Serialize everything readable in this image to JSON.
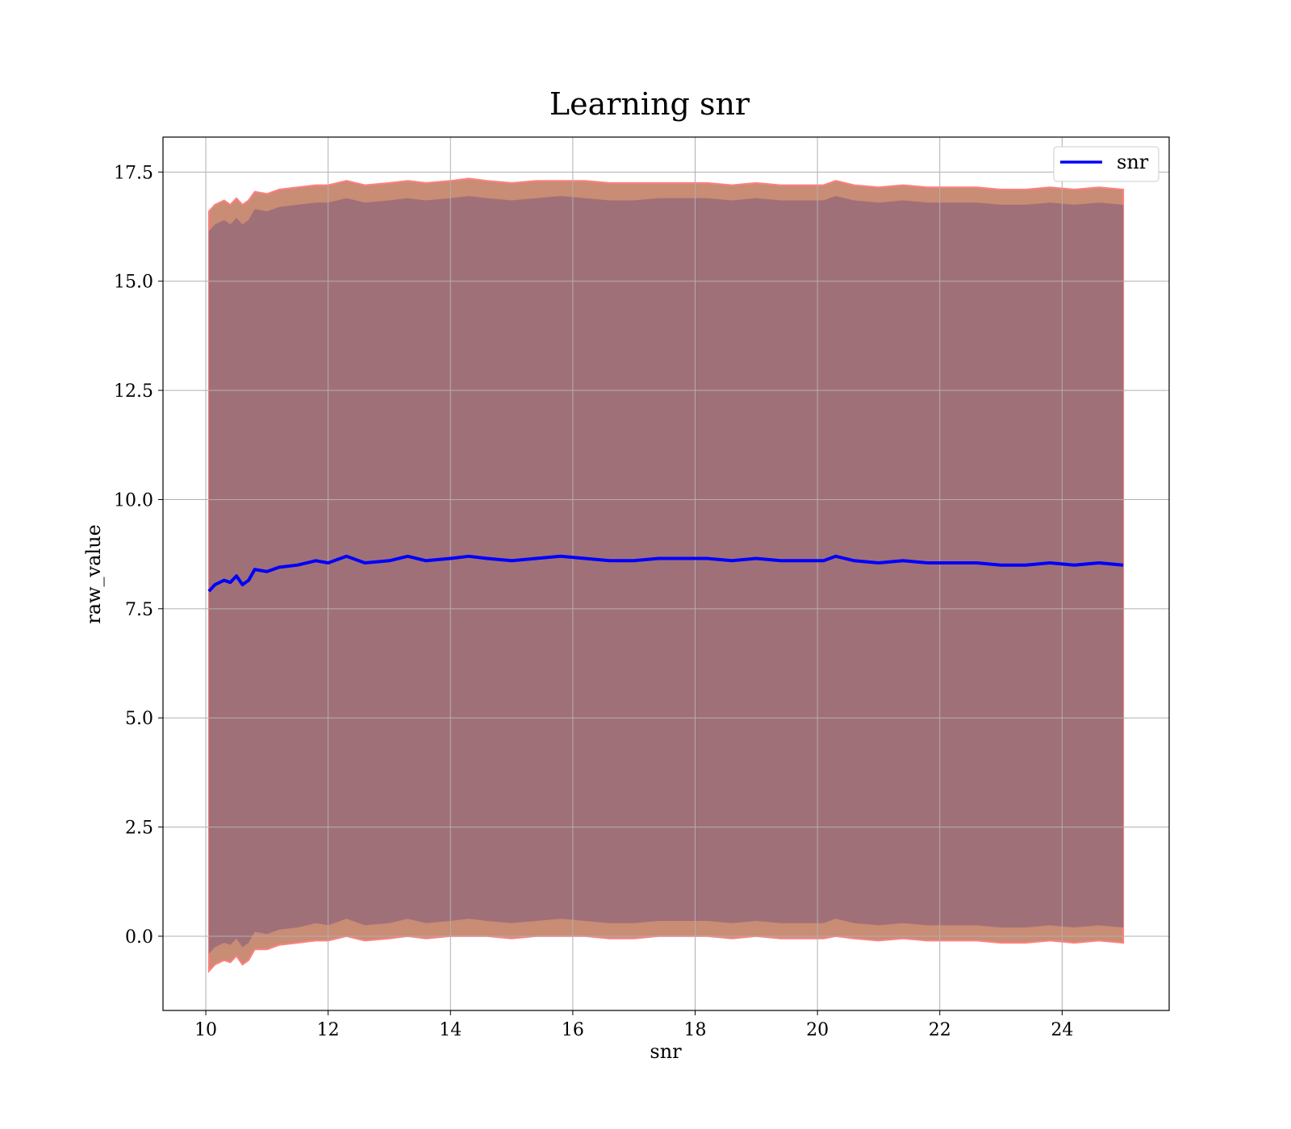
{
  "chart_data": {
    "type": "line",
    "title": "Learning snr",
    "xlabel": "snr",
    "ylabel": "raw_value",
    "xlim": [
      9.3,
      25.75
    ],
    "ylim": [
      -1.7,
      18.3
    ],
    "xticks": [
      10,
      12,
      14,
      16,
      18,
      20,
      22,
      24
    ],
    "xtick_labels": [
      "10",
      "12",
      "14",
      "16",
      "18",
      "20",
      "22",
      "24"
    ],
    "yticks": [
      0.0,
      2.5,
      5.0,
      7.5,
      10.0,
      12.5,
      15.0,
      17.5
    ],
    "ytick_labels": [
      "0.0",
      "2.5",
      "5.0",
      "7.5",
      "10.0",
      "12.5",
      "15.0",
      "17.5"
    ],
    "grid": true,
    "legend": {
      "position": "top-right",
      "entries": [
        "snr"
      ]
    },
    "colors": {
      "line": "#0000ff",
      "inner_band": "#a07078",
      "outer_band": "#c98c74",
      "band_edge": "#ff8080"
    },
    "series": [
      {
        "name": "snr",
        "x": [
          10.05,
          10.15,
          10.3,
          10.4,
          10.5,
          10.6,
          10.7,
          10.8,
          11.0,
          11.2,
          11.5,
          11.8,
          12.0,
          12.3,
          12.6,
          13.0,
          13.3,
          13.6,
          14.0,
          14.3,
          14.6,
          15.0,
          15.4,
          15.8,
          16.2,
          16.6,
          17.0,
          17.4,
          17.8,
          18.2,
          18.6,
          19.0,
          19.4,
          19.8,
          20.1,
          20.3,
          20.6,
          21.0,
          21.4,
          21.8,
          22.2,
          22.6,
          23.0,
          23.4,
          23.8,
          24.2,
          24.6,
          25.0
        ],
        "y": [
          7.9,
          8.05,
          8.15,
          8.1,
          8.25,
          8.05,
          8.15,
          8.4,
          8.35,
          8.45,
          8.5,
          8.6,
          8.55,
          8.7,
          8.55,
          8.6,
          8.7,
          8.6,
          8.65,
          8.7,
          8.65,
          8.6,
          8.65,
          8.7,
          8.65,
          8.6,
          8.6,
          8.65,
          8.65,
          8.65,
          8.6,
          8.65,
          8.6,
          8.6,
          8.6,
          8.7,
          8.6,
          8.55,
          8.6,
          8.55,
          8.55,
          8.55,
          8.5,
          8.5,
          8.55,
          8.5,
          8.55,
          8.5
        ],
        "inner_upper": [
          16.15,
          16.3,
          16.4,
          16.3,
          16.45,
          16.3,
          16.4,
          16.65,
          16.6,
          16.7,
          16.75,
          16.8,
          16.8,
          16.9,
          16.8,
          16.85,
          16.9,
          16.85,
          16.9,
          16.95,
          16.9,
          16.85,
          16.9,
          16.95,
          16.9,
          16.85,
          16.85,
          16.9,
          16.9,
          16.9,
          16.85,
          16.9,
          16.85,
          16.85,
          16.85,
          16.95,
          16.85,
          16.8,
          16.85,
          16.8,
          16.8,
          16.8,
          16.75,
          16.75,
          16.8,
          16.75,
          16.8,
          16.75
        ],
        "inner_lower": [
          -0.4,
          -0.25,
          -0.15,
          -0.2,
          -0.05,
          -0.25,
          -0.15,
          0.1,
          0.05,
          0.15,
          0.2,
          0.3,
          0.25,
          0.4,
          0.25,
          0.3,
          0.4,
          0.3,
          0.35,
          0.4,
          0.35,
          0.3,
          0.35,
          0.4,
          0.35,
          0.3,
          0.3,
          0.35,
          0.35,
          0.35,
          0.3,
          0.35,
          0.3,
          0.3,
          0.3,
          0.4,
          0.3,
          0.25,
          0.3,
          0.25,
          0.25,
          0.25,
          0.2,
          0.2,
          0.25,
          0.2,
          0.25,
          0.2
        ],
        "outer_upper": [
          16.6,
          16.75,
          16.85,
          16.75,
          16.9,
          16.75,
          16.85,
          17.05,
          17.0,
          17.1,
          17.15,
          17.2,
          17.2,
          17.3,
          17.2,
          17.25,
          17.3,
          17.25,
          17.3,
          17.35,
          17.3,
          17.25,
          17.3,
          17.3,
          17.3,
          17.25,
          17.25,
          17.25,
          17.25,
          17.25,
          17.2,
          17.25,
          17.2,
          17.2,
          17.2,
          17.3,
          17.2,
          17.15,
          17.2,
          17.15,
          17.15,
          17.15,
          17.1,
          17.1,
          17.15,
          17.1,
          17.15,
          17.1
        ],
        "outer_lower": [
          -0.8,
          -0.65,
          -0.55,
          -0.6,
          -0.45,
          -0.65,
          -0.55,
          -0.3,
          -0.3,
          -0.2,
          -0.15,
          -0.1,
          -0.1,
          0.0,
          -0.1,
          -0.05,
          0.0,
          -0.05,
          0.0,
          0.0,
          0.0,
          -0.05,
          0.0,
          0.0,
          0.0,
          -0.05,
          -0.05,
          0.0,
          0.0,
          0.0,
          -0.05,
          0.0,
          -0.05,
          -0.05,
          -0.05,
          0.0,
          -0.05,
          -0.1,
          -0.05,
          -0.1,
          -0.1,
          -0.1,
          -0.15,
          -0.15,
          -0.1,
          -0.15,
          -0.1,
          -0.15
        ]
      }
    ]
  }
}
